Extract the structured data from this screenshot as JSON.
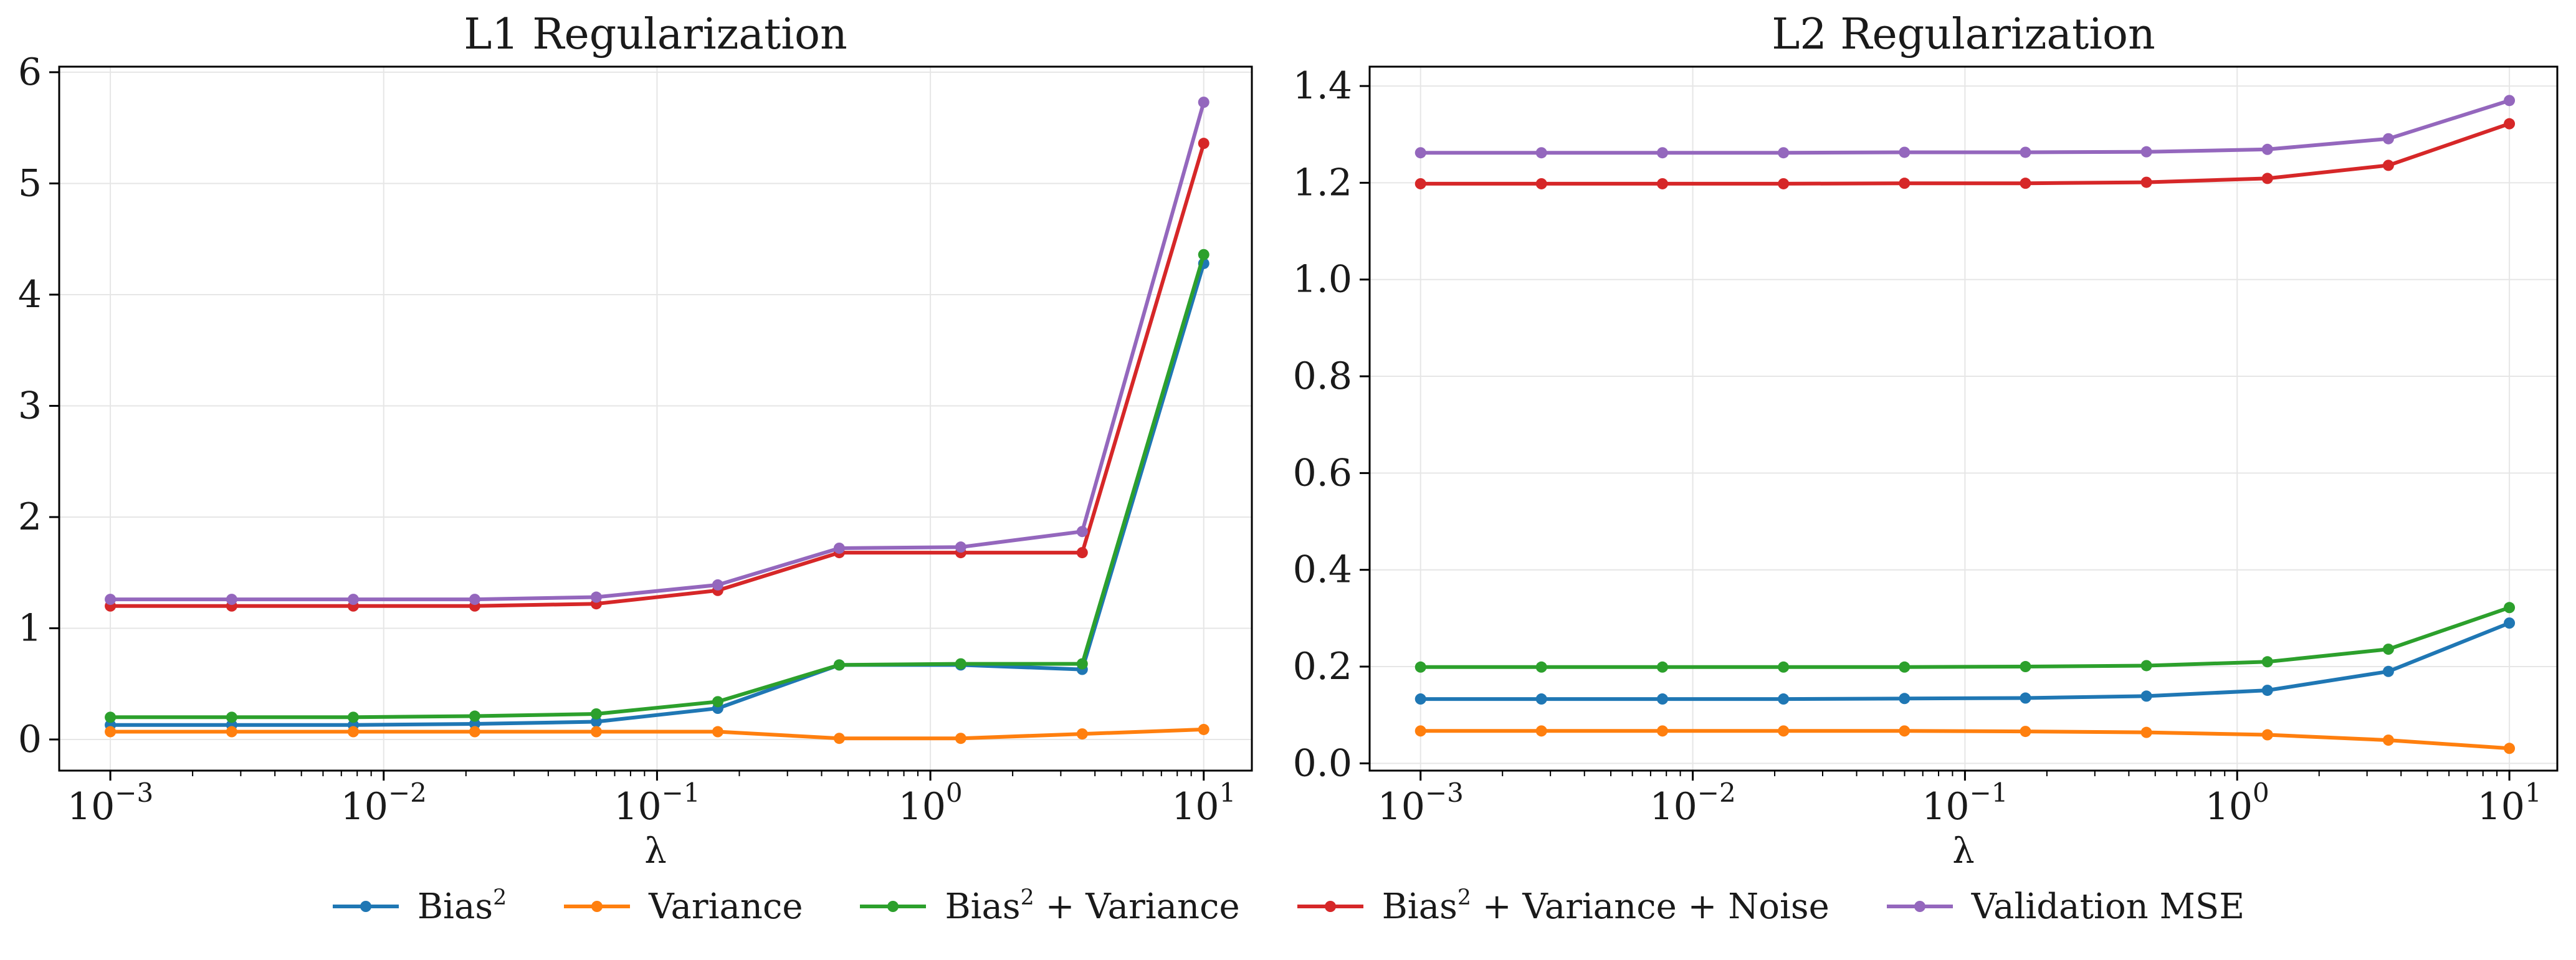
{
  "chart_data": [
    {
      "type": "line",
      "title": "L1 Regularization",
      "xlabel": "λ",
      "ylabel": "",
      "xscale": "log",
      "xlim": [
        0.00065,
        15
      ],
      "ylim": [
        -0.28,
        6.05
      ],
      "x_ticks": [
        0.001,
        0.01,
        0.1,
        1,
        10
      ],
      "x_tick_labels": [
        "10^-3",
        "10^-2",
        "10^-1",
        "10^0",
        "10^1"
      ],
      "y_ticks": [
        0,
        1,
        2,
        3,
        4,
        5,
        6
      ],
      "y_tick_labels": [
        "0",
        "1",
        "2",
        "3",
        "4",
        "5",
        "6"
      ],
      "grid": true,
      "x": [
        0.001,
        0.00278,
        0.00774,
        0.02154,
        0.05995,
        0.16681,
        0.46416,
        1.29155,
        3.59381,
        10
      ],
      "series": [
        {
          "name": "Bias^2",
          "color": "#1f77b4",
          "values": [
            0.13,
            0.13,
            0.13,
            0.14,
            0.16,
            0.28,
            0.67,
            0.67,
            0.63,
            4.28
          ]
        },
        {
          "name": "Variance",
          "color": "#ff7f0e",
          "values": [
            0.07,
            0.07,
            0.07,
            0.07,
            0.07,
            0.07,
            0.01,
            0.01,
            0.05,
            0.09
          ]
        },
        {
          "name": "Bias^2 + Variance",
          "color": "#2ca02c",
          "values": [
            0.2,
            0.2,
            0.2,
            0.21,
            0.23,
            0.34,
            0.67,
            0.68,
            0.68,
            4.36
          ]
        },
        {
          "name": "Bias^2 + Variance + Noise",
          "color": "#d62728",
          "values": [
            1.2,
            1.2,
            1.2,
            1.2,
            1.22,
            1.34,
            1.68,
            1.68,
            1.68,
            5.36
          ]
        },
        {
          "name": "Validation MSE",
          "color": "#9467bd",
          "values": [
            1.26,
            1.26,
            1.26,
            1.26,
            1.28,
            1.39,
            1.72,
            1.73,
            1.87,
            5.73
          ]
        }
      ]
    },
    {
      "type": "line",
      "title": "L2 Regularization",
      "xlabel": "λ",
      "ylabel": "",
      "xscale": "log",
      "xlim": [
        0.00065,
        15
      ],
      "ylim": [
        -0.015,
        1.44
      ],
      "x_ticks": [
        0.001,
        0.01,
        0.1,
        1,
        10
      ],
      "x_tick_labels": [
        "10^-3",
        "10^-2",
        "10^-1",
        "10^0",
        "10^1"
      ],
      "y_ticks": [
        0.0,
        0.2,
        0.4,
        0.6,
        0.8,
        1.0,
        1.2,
        1.4
      ],
      "y_tick_labels": [
        "0.0",
        "0.2",
        "0.4",
        "0.6",
        "0.8",
        "1.0",
        "1.2",
        "1.4"
      ],
      "grid": true,
      "x": [
        0.001,
        0.00278,
        0.00774,
        0.02154,
        0.05995,
        0.16681,
        0.46416,
        1.29155,
        3.59381,
        10
      ],
      "series": [
        {
          "name": "Bias^2",
          "color": "#1f77b4",
          "values": [
            0.133,
            0.133,
            0.133,
            0.133,
            0.134,
            0.135,
            0.139,
            0.151,
            0.19,
            0.29
          ]
        },
        {
          "name": "Variance",
          "color": "#ff7f0e",
          "values": [
            0.067,
            0.067,
            0.067,
            0.067,
            0.067,
            0.066,
            0.064,
            0.059,
            0.048,
            0.031
          ]
        },
        {
          "name": "Bias^2 + Variance",
          "color": "#2ca02c",
          "values": [
            0.199,
            0.199,
            0.199,
            0.199,
            0.199,
            0.2,
            0.202,
            0.21,
            0.236,
            0.322
          ]
        },
        {
          "name": "Bias^2 + Variance + Noise",
          "color": "#d62728",
          "values": [
            1.198,
            1.198,
            1.198,
            1.198,
            1.199,
            1.199,
            1.201,
            1.209,
            1.236,
            1.322
          ]
        },
        {
          "name": "Validation MSE",
          "color": "#9467bd",
          "values": [
            1.262,
            1.262,
            1.262,
            1.262,
            1.263,
            1.263,
            1.264,
            1.269,
            1.291,
            1.37
          ]
        }
      ]
    }
  ],
  "legend": {
    "placement": "bottom-center",
    "items": [
      {
        "label": "Bias",
        "sup": "2",
        "rest": "",
        "color": "#1f77b4"
      },
      {
        "label": "Variance",
        "sup": "",
        "rest": "",
        "color": "#ff7f0e"
      },
      {
        "label": "Bias",
        "sup": "2",
        "rest": " + Variance",
        "color": "#2ca02c"
      },
      {
        "label": "Bias",
        "sup": "2",
        "rest": " + Variance + Noise",
        "color": "#d62728"
      },
      {
        "label": "Validation MSE",
        "sup": "",
        "rest": "",
        "color": "#9467bd"
      }
    ]
  }
}
